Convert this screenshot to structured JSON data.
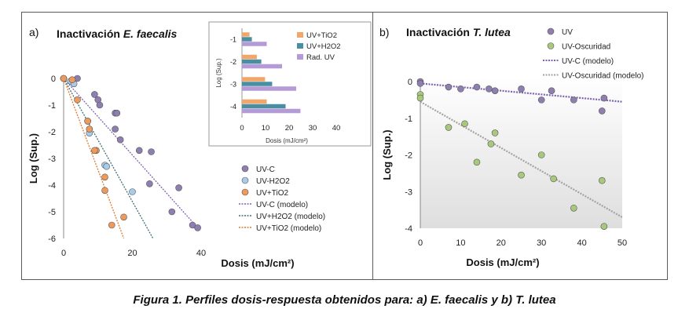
{
  "caption": "Figura 1. Perfiles dosis-respuesta obtenidos para: a) E. faecalis y b) T. lutea",
  "colors": {
    "uvc": "#8e7fb0",
    "h2o2": "#a9cbeb",
    "tio2": "#ef9a5a",
    "uvc_model": "#7d62b3",
    "h2o2_model": "#3f6e78",
    "tio2_model": "#e07a2f",
    "uv_dark": "#a8c87c",
    "uv_dark_model": "#a3a3a3",
    "inset_tio2": "#f2a66a",
    "inset_h2o2": "#4a8ea1",
    "inset_rad": "#b49ad6"
  },
  "chart_data": [
    {
      "type": "scatter",
      "panel_label": "a)",
      "title_plain": "Inactivación ",
      "title_italic": "E. faecalis",
      "xlabel": "Dosis (mJ/cm²)",
      "ylabel": "Log (Sup.)",
      "xlim": [
        0,
        40
      ],
      "ylim": [
        -6,
        0
      ],
      "xticks": [
        "0",
        "20",
        "40"
      ],
      "yticks": [
        "0",
        "-1",
        "-2",
        "-3",
        "-4",
        "-5",
        "-6"
      ],
      "series": [
        {
          "name": "UV-C",
          "x": [
            0,
            4,
            9,
            10,
            10.5,
            15,
            15.5,
            15,
            16.5,
            22,
            25.5,
            25,
            33.5,
            31.5,
            37.5,
            39
          ],
          "y": [
            0,
            0,
            -0.6,
            -0.8,
            -1,
            -1.3,
            -1.3,
            -1.9,
            -2.3,
            -2.7,
            -2.75,
            -3.95,
            -4.1,
            -5,
            -5.5,
            -5.6
          ]
        },
        {
          "name": "UV-H2O2",
          "x": [
            0,
            2,
            3,
            7,
            7.5,
            12,
            12.5,
            20
          ],
          "y": [
            0,
            -0.1,
            -0.2,
            -1.6,
            -2.05,
            -3.25,
            -3.3,
            -4.25
          ]
        },
        {
          "name": "UV+TiO2",
          "x": [
            0,
            2.5,
            4,
            7,
            7.5,
            9.5,
            9,
            12,
            12,
            14,
            17.5
          ],
          "y": [
            0,
            -0.05,
            -0.8,
            -1.6,
            -1.9,
            -2.7,
            -2.7,
            -3.7,
            -4.2,
            -5.5,
            -5.2
          ]
        }
      ],
      "models": [
        {
          "name": "UV-C (modelo)",
          "x": [
            0,
            39
          ],
          "y": [
            0,
            -5.6
          ]
        },
        {
          "name": "UV+H2O2 (modelo)",
          "x": [
            0,
            26
          ],
          "y": [
            0,
            -6
          ]
        },
        {
          "name": "UV+TiO2 (modelo)",
          "x": [
            0,
            17.5
          ],
          "y": [
            0,
            -6
          ]
        }
      ],
      "legend": [
        "UV-C",
        "UV-H2O2",
        "UV+TiO2",
        "UV-C (modelo)",
        "UV+H2O2 (modelo)",
        "UV+TiO2 (modelo)"
      ],
      "legend_position": "bottom-right",
      "grid": false,
      "inset": {
        "type": "bar",
        "orientation": "horizontal",
        "xlabel": "Dosis (mJ/cm²)",
        "ylabel": "Log (Sup.)",
        "categories": [
          "-1",
          "-2",
          "-3",
          "-4"
        ],
        "xlim": [
          0,
          40
        ],
        "xticks": [
          "0",
          "10",
          "20",
          "30",
          "40"
        ],
        "series": [
          {
            "name": "UV+TiO2",
            "values": [
              3.2,
              6.3,
              9.8,
              10.5
            ]
          },
          {
            "name": "UV+H2O2",
            "values": [
              4.2,
              8.2,
              12.8,
              18.5
            ]
          },
          {
            "name": "Rad. UV",
            "values": [
              10.5,
              17.0,
              23.0,
              24.8
            ]
          }
        ],
        "legend_position": "top-right"
      }
    },
    {
      "type": "scatter",
      "panel_label": "b)",
      "title_plain": "Inactivación ",
      "title_italic": "T. lutea",
      "xlabel": "Dosis (mJ/cm²)",
      "ylabel": "Log (Sup.)",
      "xlim": [
        0,
        50
      ],
      "ylim": [
        -4,
        0
      ],
      "xticks": [
        "0",
        "10",
        "20",
        "30",
        "40",
        "50"
      ],
      "yticks": [
        "0",
        "-1",
        "-2",
        "-3",
        "-4"
      ],
      "series": [
        {
          "name": "UV",
          "x": [
            0,
            0,
            7,
            10,
            14,
            17,
            18.5,
            25,
            30,
            32.5,
            38,
            45,
            45.5
          ],
          "y": [
            0,
            -0.05,
            -0.15,
            -0.2,
            -0.15,
            -0.2,
            -0.25,
            -0.2,
            -0.5,
            -0.25,
            -0.5,
            -0.8,
            -0.45
          ]
        },
        {
          "name": "UV-Oscuridad",
          "x": [
            0,
            0,
            7,
            11,
            14,
            17.5,
            18.5,
            25,
            30,
            33,
            38,
            45,
            45.5
          ],
          "y": [
            -0.35,
            -0.45,
            -1.25,
            -1.15,
            -2.2,
            -1.7,
            -1.4,
            -2.55,
            -2.0,
            -2.65,
            -3.45,
            -2.7,
            -3.95
          ]
        }
      ],
      "models": [
        {
          "name": "UV-C (modelo)",
          "x": [
            0,
            50
          ],
          "y": [
            -0.05,
            -0.55
          ]
        },
        {
          "name": "UV-Oscuridad (modelo)",
          "x": [
            0,
            50
          ],
          "y": [
            -0.55,
            -3.7
          ]
        }
      ],
      "legend": [
        "UV",
        "UV-Oscuridad",
        "UV-C (modelo)",
        "UV-Oscuridad (modelo)"
      ],
      "legend_position": "top-right",
      "grid": false
    }
  ]
}
